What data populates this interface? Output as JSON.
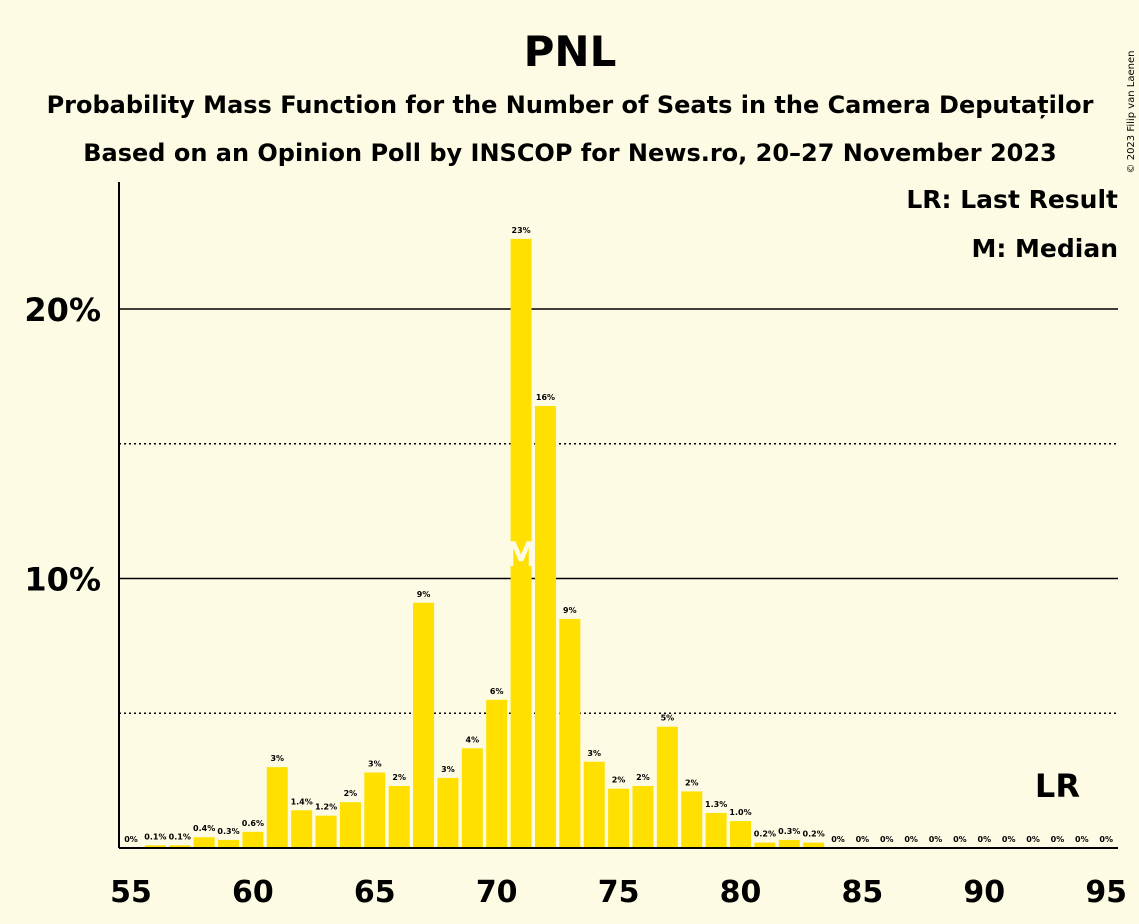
{
  "chart_data": {
    "type": "bar",
    "title": "PNL",
    "subtitle": "Probability Mass Function for the Number of Seats in the Camera Deputaților",
    "subtitle2": "Based on an Opinion Poll by INSCOP for News.ro, 20–27 November 2023",
    "copyright": "© 2023 Filip van Laenen",
    "legend": [
      "LR: Last Result",
      "M: Median"
    ],
    "legend_position": "top-right",
    "x": [
      55,
      56,
      57,
      58,
      59,
      60,
      61,
      62,
      63,
      64,
      65,
      66,
      67,
      68,
      69,
      70,
      71,
      72,
      73,
      74,
      75,
      76,
      77,
      78,
      79,
      80,
      81,
      82,
      83,
      84,
      85,
      86,
      87,
      88,
      89,
      90,
      91,
      92,
      93,
      94,
      95
    ],
    "values": [
      0,
      0.1,
      0.1,
      0.4,
      0.3,
      0.6,
      3.0,
      1.4,
      1.2,
      1.7,
      2.8,
      2.3,
      9.1,
      2.6,
      3.7,
      5.5,
      22.6,
      16.4,
      8.5,
      3.2,
      2.2,
      2.3,
      4.5,
      2.1,
      1.3,
      1.0,
      0.2,
      0.3,
      0.2,
      0,
      0,
      0,
      0,
      0,
      0,
      0,
      0,
      0,
      0,
      0,
      0
    ],
    "labels": [
      "0%",
      "0.1%",
      "0.1%",
      "0.4%",
      "0.3%",
      "0.6%",
      "3%",
      "1.4%",
      "1.2%",
      "2%",
      "3%",
      "2%",
      "9%",
      "3%",
      "4%",
      "6%",
      "23%",
      "16%",
      "9%",
      "3%",
      "2%",
      "2%",
      "5%",
      "2%",
      "1.3%",
      "1.0%",
      "0.2%",
      "0.3%",
      "0.2%",
      "0%",
      "0%",
      "0%",
      "0%",
      "0%",
      "0%",
      "0%",
      "0%",
      "0%",
      "0%",
      "0%",
      "0%"
    ],
    "x_ticks": [
      "55",
      "60",
      "65",
      "70",
      "75",
      "80",
      "85",
      "90",
      "95"
    ],
    "y_ticks": [
      "10%",
      "20%"
    ],
    "ylim": [
      0,
      24.7
    ],
    "xlim": [
      55,
      95
    ],
    "median_seat": 71,
    "median_mark": "M",
    "last_result_seat": 93,
    "last_result_mark": "LR",
    "bar_color": "#ffe000",
    "background_color": "#fefbe4",
    "grid": "solid at 10% and 20%, dotted at 5% and 15%"
  }
}
